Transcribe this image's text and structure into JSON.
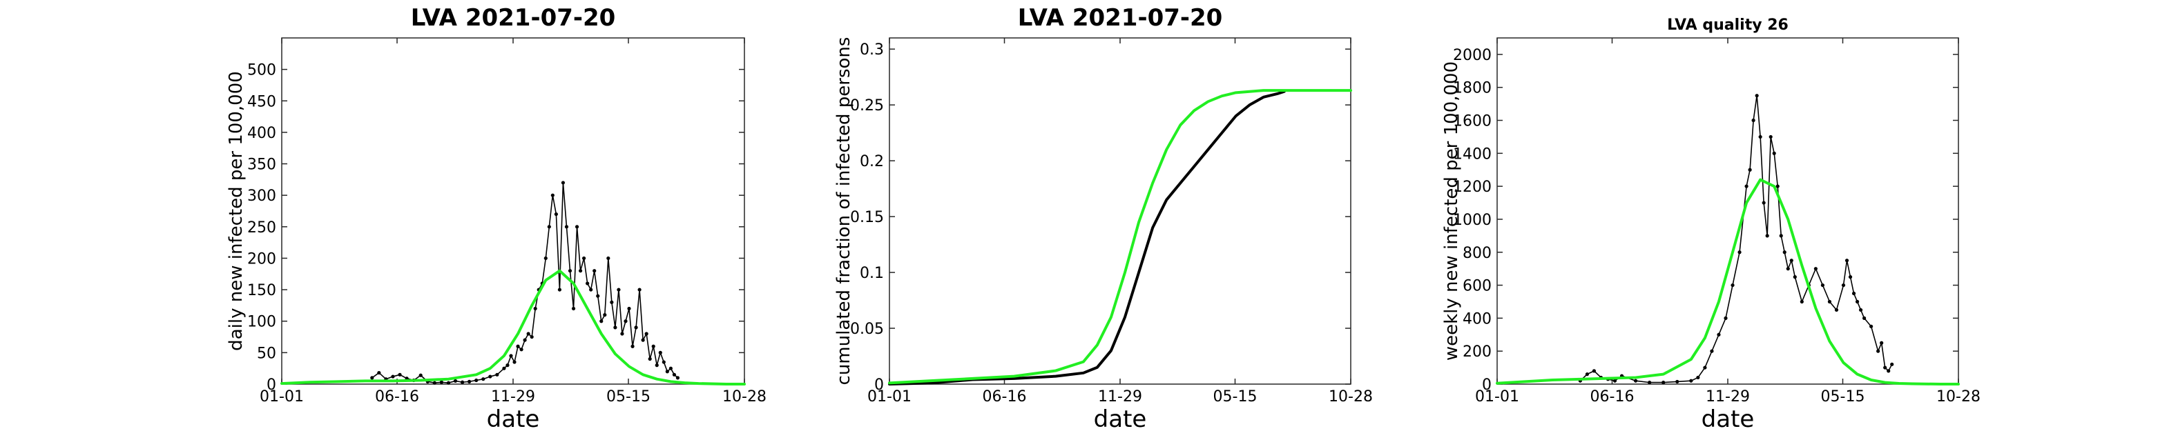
{
  "chart_data": [
    {
      "type": "line",
      "title": "LVA   2021-07-20",
      "xlabel": "date",
      "ylabel": "daily new infected per 100,000",
      "x_tick_labels": [
        "01-01",
        "06-16",
        "11-29",
        "05-15",
        "10-28"
      ],
      "x_range_days": [
        0,
        666
      ],
      "ylim": [
        0,
        550
      ],
      "y_ticks": [
        0,
        50,
        100,
        150,
        200,
        250,
        300,
        350,
        400,
        450,
        500
      ],
      "grid": false,
      "series": [
        {
          "color": "#000000",
          "style": "line-with-dot-markers",
          "x_days": [
            130,
            140,
            150,
            160,
            170,
            180,
            190,
            200,
            210,
            220,
            230,
            240,
            250,
            260,
            270,
            280,
            290,
            300,
            310,
            320,
            325,
            330,
            335,
            340,
            345,
            350,
            355,
            360,
            365,
            370,
            375,
            380,
            385,
            390,
            395,
            400,
            405,
            410,
            415,
            420,
            425,
            430,
            435,
            440,
            445,
            450,
            455,
            460,
            465,
            470,
            475,
            480,
            485,
            490,
            495,
            500,
            505,
            510,
            515,
            520,
            525,
            530,
            535,
            540,
            545,
            550,
            555,
            560,
            565,
            570
          ],
          "values": [
            10,
            18,
            8,
            12,
            15,
            9,
            6,
            14,
            4,
            2,
            3,
            2,
            5,
            3,
            4,
            6,
            8,
            12,
            15,
            25,
            30,
            45,
            35,
            60,
            55,
            70,
            80,
            75,
            120,
            150,
            160,
            200,
            250,
            300,
            270,
            150,
            320,
            250,
            180,
            120,
            250,
            180,
            200,
            160,
            150,
            180,
            140,
            100,
            110,
            200,
            130,
            90,
            150,
            80,
            100,
            120,
            60,
            90,
            150,
            70,
            80,
            40,
            60,
            30,
            50,
            35,
            20,
            25,
            15,
            10
          ]
        },
        {
          "color": "#22ee22",
          "style": "line",
          "x_days": [
            0,
            40,
            80,
            120,
            160,
            200,
            240,
            280,
            300,
            320,
            340,
            360,
            380,
            400,
            420,
            440,
            460,
            480,
            500,
            520,
            540,
            560,
            580,
            600,
            640,
            666
          ],
          "values": [
            1,
            3,
            4,
            5,
            5,
            6,
            8,
            15,
            25,
            45,
            80,
            125,
            165,
            180,
            160,
            120,
            80,
            48,
            28,
            15,
            8,
            4,
            2,
            1,
            0,
            0
          ]
        }
      ]
    },
    {
      "type": "line",
      "title": "LVA   2021-07-20",
      "xlabel": "date",
      "ylabel": "cumulated fraction of infected persons",
      "x_tick_labels": [
        "01-01",
        "06-16",
        "11-29",
        "05-15",
        "10-28"
      ],
      "x_range_days": [
        0,
        666
      ],
      "ylim": [
        0,
        0.31
      ],
      "y_ticks": [
        0,
        0.05,
        0.1,
        0.15,
        0.2,
        0.25,
        0.3
      ],
      "y_tick_labels": [
        "0",
        "0.05",
        "0.1",
        "0.15",
        "0.2",
        "0.25",
        "0.3"
      ],
      "grid": false,
      "series": [
        {
          "color": "#000000",
          "style": "thick-dotted-line",
          "x_days": [
            0,
            60,
            120,
            180,
            240,
            280,
            300,
            320,
            340,
            360,
            380,
            400,
            420,
            440,
            460,
            480,
            500,
            520,
            540,
            560,
            570
          ],
          "values": [
            0,
            0.001,
            0.004,
            0.005,
            0.007,
            0.01,
            0.015,
            0.03,
            0.06,
            0.1,
            0.14,
            0.165,
            0.18,
            0.195,
            0.21,
            0.225,
            0.24,
            0.25,
            0.257,
            0.26,
            0.262
          ]
        },
        {
          "color": "#22ee22",
          "style": "line",
          "x_days": [
            0,
            60,
            120,
            180,
            240,
            280,
            300,
            320,
            340,
            360,
            380,
            400,
            420,
            440,
            460,
            480,
            500,
            520,
            540,
            560,
            580,
            600,
            666
          ],
          "values": [
            0.001,
            0.003,
            0.005,
            0.007,
            0.012,
            0.02,
            0.035,
            0.06,
            0.1,
            0.145,
            0.18,
            0.21,
            0.232,
            0.245,
            0.253,
            0.258,
            0.261,
            0.262,
            0.263,
            0.263,
            0.263,
            0.263,
            0.263
          ]
        }
      ]
    },
    {
      "type": "line",
      "title": "LVA  quality 26",
      "xlabel": "date",
      "ylabel": "weekly new infected per 100,000",
      "x_tick_labels": [
        "01-01",
        "06-16",
        "11-29",
        "05-15",
        "10-28"
      ],
      "x_range_days": [
        0,
        666
      ],
      "ylim": [
        0,
        2100
      ],
      "y_ticks": [
        0,
        200,
        400,
        600,
        800,
        1000,
        1200,
        1400,
        1600,
        1800,
        2000
      ],
      "grid": false,
      "series": [
        {
          "color": "#000000",
          "style": "line-with-dot-markers",
          "x_days": [
            120,
            130,
            140,
            150,
            160,
            170,
            180,
            200,
            220,
            240,
            260,
            280,
            290,
            300,
            310,
            320,
            330,
            340,
            350,
            360,
            365,
            370,
            375,
            380,
            385,
            390,
            395,
            400,
            405,
            410,
            415,
            420,
            425,
            430,
            440,
            450,
            460,
            470,
            480,
            490,
            500,
            505,
            510,
            515,
            520,
            525,
            530,
            540,
            550,
            555,
            560,
            565,
            570
          ],
          "values": [
            20,
            60,
            80,
            40,
            30,
            20,
            50,
            20,
            10,
            10,
            15,
            20,
            40,
            100,
            200,
            300,
            400,
            600,
            800,
            1200,
            1300,
            1600,
            1750,
            1500,
            1100,
            900,
            1500,
            1400,
            1200,
            900,
            800,
            700,
            750,
            650,
            500,
            600,
            700,
            600,
            500,
            450,
            600,
            750,
            650,
            550,
            500,
            450,
            400,
            350,
            200,
            250,
            100,
            80,
            120
          ]
        },
        {
          "color": "#22ee22",
          "style": "line",
          "x_days": [
            0,
            40,
            80,
            120,
            160,
            200,
            240,
            280,
            300,
            320,
            340,
            360,
            380,
            400,
            420,
            440,
            460,
            480,
            500,
            520,
            540,
            560,
            580,
            600,
            640,
            666
          ],
          "values": [
            5,
            15,
            25,
            30,
            35,
            40,
            60,
            150,
            280,
            500,
            800,
            1100,
            1240,
            1200,
            1000,
            720,
            460,
            260,
            130,
            60,
            25,
            10,
            4,
            2,
            0,
            0
          ]
        }
      ]
    }
  ]
}
